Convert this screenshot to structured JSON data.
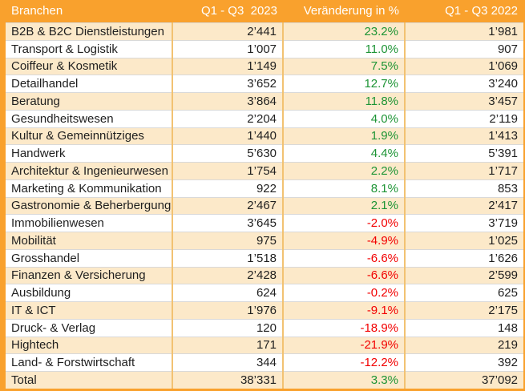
{
  "colors": {
    "header_bg": "#F9A12D",
    "alt_row_bg": "#FCE9C9",
    "positive_change": "#1D9435",
    "negative_change": "#F20000",
    "grid_vertical": "#F2C272",
    "grid_horizontal": "#D9D9D9"
  },
  "header": {
    "branchen": "Branchen",
    "q2023": "Q1 - Q3  2023",
    "change": "Veränderung in %",
    "q2022": "Q1 - Q3 2022"
  },
  "rows": [
    {
      "name": "B2B & B2C Dienstleistungen",
      "v2023": "2’441",
      "change": "23.2%",
      "v2022": "1’981"
    },
    {
      "name": "Transport & Logistik",
      "v2023": "1’007",
      "change": "11.0%",
      "v2022": "907"
    },
    {
      "name": "Coiffeur & Kosmetik",
      "v2023": "1’149",
      "change": "7.5%",
      "v2022": "1’069"
    },
    {
      "name": "Detailhandel",
      "v2023": "3’652",
      "change": "12.7%",
      "v2022": "3’240"
    },
    {
      "name": "Beratung",
      "v2023": "3’864",
      "change": "11.8%",
      "v2022": "3’457"
    },
    {
      "name": "Gesundheitswesen",
      "v2023": "2’204",
      "change": "4.0%",
      "v2022": "2’119"
    },
    {
      "name": "Kultur & Gemeinnütziges",
      "v2023": "1’440",
      "change": "1.9%",
      "v2022": "1’413"
    },
    {
      "name": "Handwerk",
      "v2023": "5’630",
      "change": "4.4%",
      "v2022": "5’391"
    },
    {
      "name": "Architektur & Ingenieurwesen",
      "v2023": "1’754",
      "change": "2.2%",
      "v2022": "1’717"
    },
    {
      "name": "Marketing & Kommunikation",
      "v2023": "922",
      "change": "8.1%",
      "v2022": "853"
    },
    {
      "name": "Gastronomie & Beherbergung",
      "v2023": "2’467",
      "change": "2.1%",
      "v2022": "2’417"
    },
    {
      "name": "Immobilienwesen",
      "v2023": "3’645",
      "change": "-2.0%",
      "v2022": "3’719"
    },
    {
      "name": "Mobilität",
      "v2023": "975",
      "change": "-4.9%",
      "v2022": "1’025"
    },
    {
      "name": "Grosshandel",
      "v2023": "1’518",
      "change": "-6.6%",
      "v2022": "1’626"
    },
    {
      "name": "Finanzen & Versicherung",
      "v2023": "2’428",
      "change": "-6.6%",
      "v2022": "2’599"
    },
    {
      "name": "Ausbildung",
      "v2023": "624",
      "change": "-0.2%",
      "v2022": "625"
    },
    {
      "name": "IT & ICT",
      "v2023": "1’976",
      "change": "-9.1%",
      "v2022": "2’175"
    },
    {
      "name": "Druck- & Verlag",
      "v2023": "120",
      "change": "-18.9%",
      "v2022": "148"
    },
    {
      "name": "Hightech",
      "v2023": "171",
      "change": "-21.9%",
      "v2022": "219"
    },
    {
      "name": "Land- & Forstwirtschaft",
      "v2023": "344",
      "change": "-12.2%",
      "v2022": "392"
    },
    {
      "name": "Total",
      "v2023": "38’331",
      "change": "3.3%",
      "v2022": "37’092"
    }
  ],
  "chart_data": {
    "type": "table",
    "title": "Branchen Q1 - Q3 2023 vs Q1 - Q3 2022",
    "columns": [
      "Branchen",
      "Q1 - Q3 2023",
      "Veränderung in %",
      "Q1 - Q3 2022"
    ],
    "categories": [
      "B2B & B2C Dienstleistungen",
      "Transport & Logistik",
      "Coiffeur & Kosmetik",
      "Detailhandel",
      "Beratung",
      "Gesundheitswesen",
      "Kultur & Gemeinnütziges",
      "Handwerk",
      "Architektur & Ingenieurwesen",
      "Marketing & Kommunikation",
      "Gastronomie & Beherbergung",
      "Immobilienwesen",
      "Mobilität",
      "Grosshandel",
      "Finanzen & Versicherung",
      "Ausbildung",
      "IT & ICT",
      "Druck- & Verlag",
      "Hightech",
      "Land- & Forstwirtschaft",
      "Total"
    ],
    "series": [
      {
        "name": "Q1 - Q3 2023",
        "values": [
          2441,
          1007,
          1149,
          3652,
          3864,
          2204,
          1440,
          5630,
          1754,
          922,
          2467,
          3645,
          975,
          1518,
          2428,
          624,
          1976,
          120,
          171,
          344,
          38331
        ]
      },
      {
        "name": "Veränderung in %",
        "values": [
          23.2,
          11.0,
          7.5,
          12.7,
          11.8,
          4.0,
          1.9,
          4.4,
          2.2,
          8.1,
          2.1,
          -2.0,
          -4.9,
          -6.6,
          -6.6,
          -0.2,
          -9.1,
          -18.9,
          -21.9,
          -12.2,
          3.3
        ]
      },
      {
        "name": "Q1 - Q3 2022",
        "values": [
          1981,
          907,
          1069,
          3240,
          3457,
          2119,
          1413,
          5391,
          1717,
          853,
          2417,
          3719,
          1025,
          1626,
          2599,
          625,
          2175,
          148,
          219,
          392,
          37092
        ]
      }
    ]
  }
}
